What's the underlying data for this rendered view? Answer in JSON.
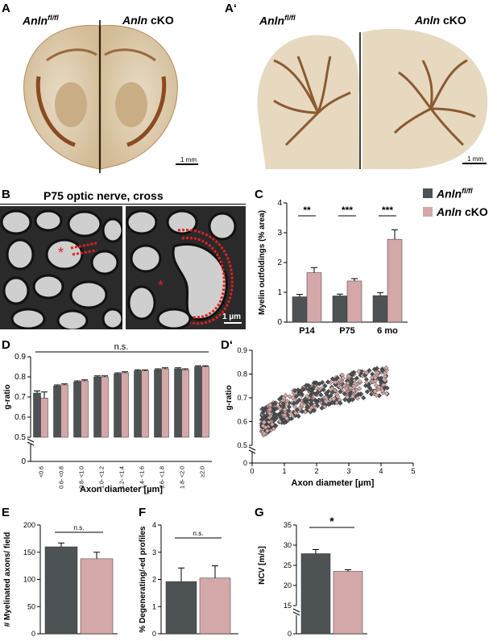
{
  "panels": {
    "A": {
      "letter": "A",
      "left_label": "Anln",
      "left_sup": "fl/fl",
      "right_label": "Anln",
      "right_suffix": " cKO",
      "scale": "1 mm"
    },
    "A2": {
      "letter": "A‘",
      "left_label": "Anln",
      "left_sup": "fl/fl",
      "right_label": "Anln",
      "right_suffix": " cKO",
      "scale": "1 mm"
    },
    "B": {
      "letter": "B",
      "title": "P75 optic nerve, cross",
      "scale": "1 µm"
    },
    "C": {
      "letter": "C"
    },
    "D": {
      "letter": "D"
    },
    "D2": {
      "letter": "D‘"
    },
    "E": {
      "letter": "E"
    },
    "F": {
      "letter": "F"
    },
    "G": {
      "letter": "G"
    }
  },
  "legend": {
    "items": [
      {
        "label": "Anln",
        "sup": "fl/fl",
        "suffix": "",
        "color": "#4d5354"
      },
      {
        "label": "Anln",
        "sup": "",
        "suffix": " cKO",
        "color": "#d4a8a8"
      }
    ]
  },
  "colors": {
    "dark": "#4d5354",
    "pink": "#d4a8a8"
  },
  "chart_data": [
    {
      "id": "C",
      "type": "bar",
      "categories": [
        "P14",
        "P75",
        "6 mo"
      ],
      "series": [
        {
          "name": "Anln fl/fl",
          "values": [
            0.85,
            0.88,
            0.89
          ],
          "errors": [
            0.08,
            0.06,
            0.1
          ]
        },
        {
          "name": "Anln cKO",
          "values": [
            1.66,
            1.38,
            2.78
          ],
          "errors": [
            0.17,
            0.08,
            0.32
          ]
        }
      ],
      "ylabel": "Myelin outfoldings (% area)",
      "ylim": [
        0,
        4
      ],
      "yticks": [
        "0",
        "1",
        "2",
        "3",
        "4"
      ],
      "significance": [
        "**",
        "***",
        "***"
      ]
    },
    {
      "id": "D",
      "type": "bar",
      "categories": [
        "<0.6",
        "0.6- <0.8",
        "0.8- <1.0",
        "1.0- <1.2",
        "1.2- <1.4",
        "1.4- <1.6",
        "1.6- <1.8",
        "1.8- <2.0",
        "≥2.0"
      ],
      "series": [
        {
          "name": "Anln fl/fl",
          "values": [
            0.72,
            0.755,
            0.775,
            0.8,
            0.815,
            0.83,
            0.835,
            0.84,
            0.85
          ],
          "errors": [
            0.01,
            0.005,
            0.005,
            0.005,
            0.005,
            0.005,
            0.005,
            0.005,
            0.005
          ]
        },
        {
          "name": "Anln cKO",
          "values": [
            0.695,
            0.76,
            0.78,
            0.8,
            0.82,
            0.83,
            0.84,
            0.835,
            0.85
          ],
          "errors": [
            0.03,
            0.005,
            0.005,
            0.005,
            0.005,
            0.005,
            0.005,
            0.005,
            0.005
          ]
        }
      ],
      "ylabel": "g-ratio",
      "xlabel": "Axon diameter [µm]",
      "ylim": [
        0.5,
        0.9
      ],
      "yticks": [
        "0.5",
        "0.6",
        "0.7",
        "0.8",
        "0.9"
      ],
      "extra_ytick": "0",
      "significance": "n.s."
    },
    {
      "id": "D2",
      "type": "scatter",
      "ylabel": "g-ratio",
      "xlabel": "Axon diameter [µm]",
      "xlim": [
        0,
        5
      ],
      "ylim": [
        0.5,
        0.9
      ],
      "xticks": [
        "0",
        "1",
        "2",
        "3",
        "4",
        "5"
      ],
      "yticks": [
        "0.5",
        "0.6",
        "0.7",
        "0.8",
        "0.9"
      ],
      "extra_ytick": "0"
    },
    {
      "id": "E",
      "type": "bar",
      "categories": [
        "Anln fl/fl",
        "Anln cKO"
      ],
      "values": [
        160,
        138
      ],
      "errors": [
        7,
        12
      ],
      "ylabel": "# Myelinated axons/ field",
      "ylim": [
        0,
        200
      ],
      "yticks": [
        "0",
        "50",
        "100",
        "150",
        "200"
      ],
      "significance": "n.s."
    },
    {
      "id": "F",
      "type": "bar",
      "categories": [
        "Anln fl/fl",
        "Anln cKO"
      ],
      "values": [
        1.92,
        2.05
      ],
      "errors": [
        0.5,
        0.45
      ],
      "ylabel": "% Degenerating/-ed profiles",
      "ylim": [
        0,
        4
      ],
      "yticks": [
        "0",
        "1",
        "2",
        "3",
        "4"
      ],
      "significance": "n.s."
    },
    {
      "id": "G",
      "type": "bar",
      "categories": [
        "Anln fl/fl",
        "Anln cKO"
      ],
      "values": [
        27.9,
        23.5
      ],
      "errors": [
        1.0,
        0.4
      ],
      "ylabel": "NCV [m/s]",
      "ylim": [
        15,
        35
      ],
      "yticks": [
        "15",
        "20",
        "25",
        "30",
        "35"
      ],
      "extra_ytick": "0",
      "significance": "*"
    }
  ]
}
